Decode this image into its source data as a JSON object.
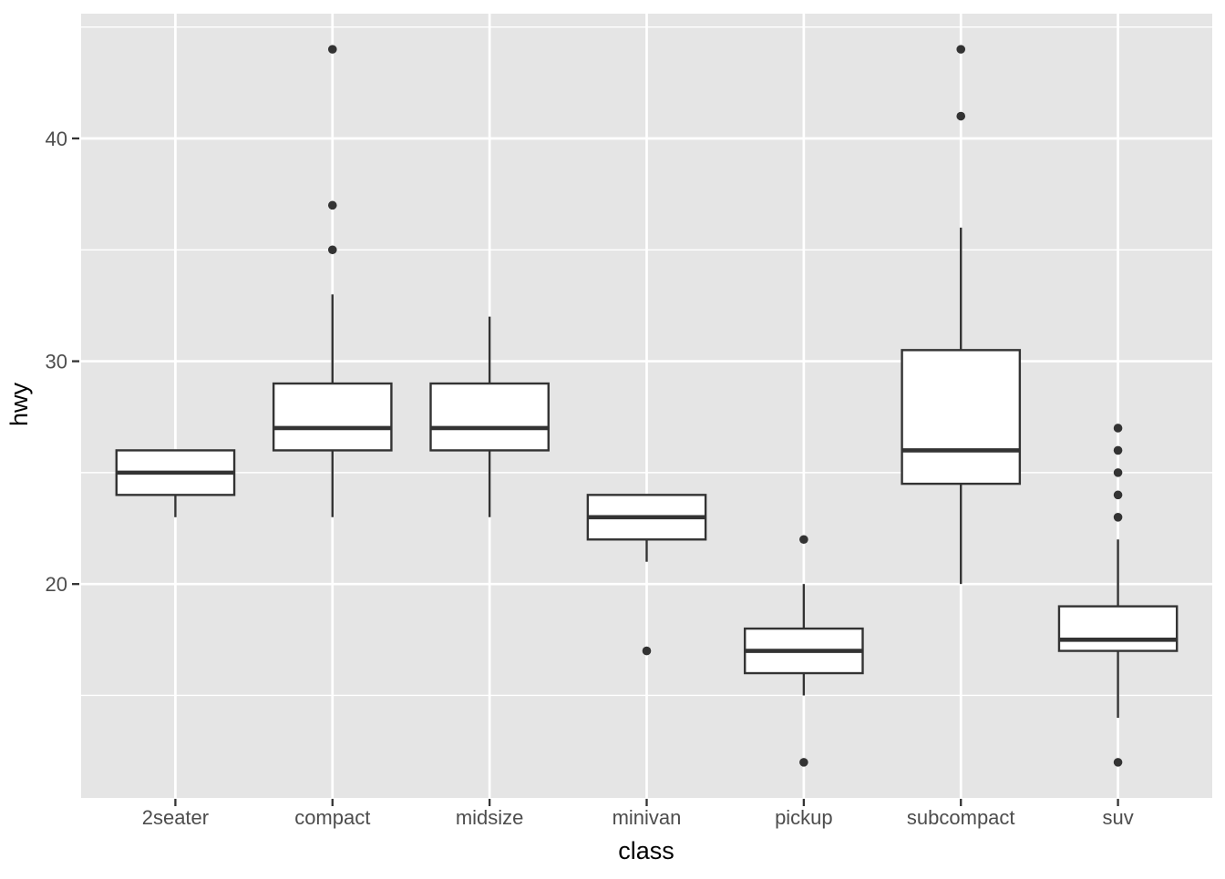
{
  "chart_data": {
    "type": "boxplot",
    "title": "",
    "xlabel": "class",
    "ylabel": "hwy",
    "categories": [
      "2seater",
      "compact",
      "midsize",
      "minivan",
      "pickup",
      "subcompact",
      "suv"
    ],
    "series": [
      {
        "category": "2seater",
        "whisker_low": 23,
        "q1": 24,
        "median": 25,
        "q3": 26,
        "whisker_high": 26,
        "outliers": []
      },
      {
        "category": "compact",
        "whisker_low": 23,
        "q1": 26,
        "median": 27,
        "q3": 29,
        "whisker_high": 33,
        "outliers": [
          35,
          37,
          44
        ]
      },
      {
        "category": "midsize",
        "whisker_low": 23,
        "q1": 26,
        "median": 27,
        "q3": 29,
        "whisker_high": 32,
        "outliers": []
      },
      {
        "category": "minivan",
        "whisker_low": 21,
        "q1": 22,
        "median": 23,
        "q3": 24,
        "whisker_high": 24,
        "outliers": [
          17
        ]
      },
      {
        "category": "pickup",
        "whisker_low": 15,
        "q1": 16,
        "median": 17,
        "q3": 18,
        "whisker_high": 20,
        "outliers": [
          22,
          12
        ]
      },
      {
        "category": "subcompact",
        "whisker_low": 20,
        "q1": 24.5,
        "median": 26,
        "q3": 30.5,
        "whisker_high": 36,
        "outliers": [
          44,
          41
        ]
      },
      {
        "category": "suv",
        "whisker_low": 14,
        "q1": 17,
        "median": 17.5,
        "q3": 19,
        "whisker_high": 22,
        "outliers": [
          27,
          26,
          25,
          24,
          23,
          12
        ]
      }
    ],
    "y_axis": {
      "ticks": [
        20,
        30,
        40
      ],
      "tick_labels": [
        "20",
        "30",
        "40"
      ],
      "minor_ticks": [
        15,
        25,
        35,
        45
      ],
      "range": [
        10.4,
        45.6
      ]
    },
    "layout_hints": {
      "grid": "on",
      "legend": "none",
      "box_relative_width": 0.75
    },
    "style": {
      "panel_bg": "#e5e5e5",
      "grid_color": "#ffffff",
      "box_stroke": "#333333",
      "box_fill": "#ffffff",
      "outlier_color": "#333333",
      "tick_mark_color": "#333333",
      "tick_label_color": "#4d4d4d",
      "axis_title_color": "#000000"
    }
  }
}
